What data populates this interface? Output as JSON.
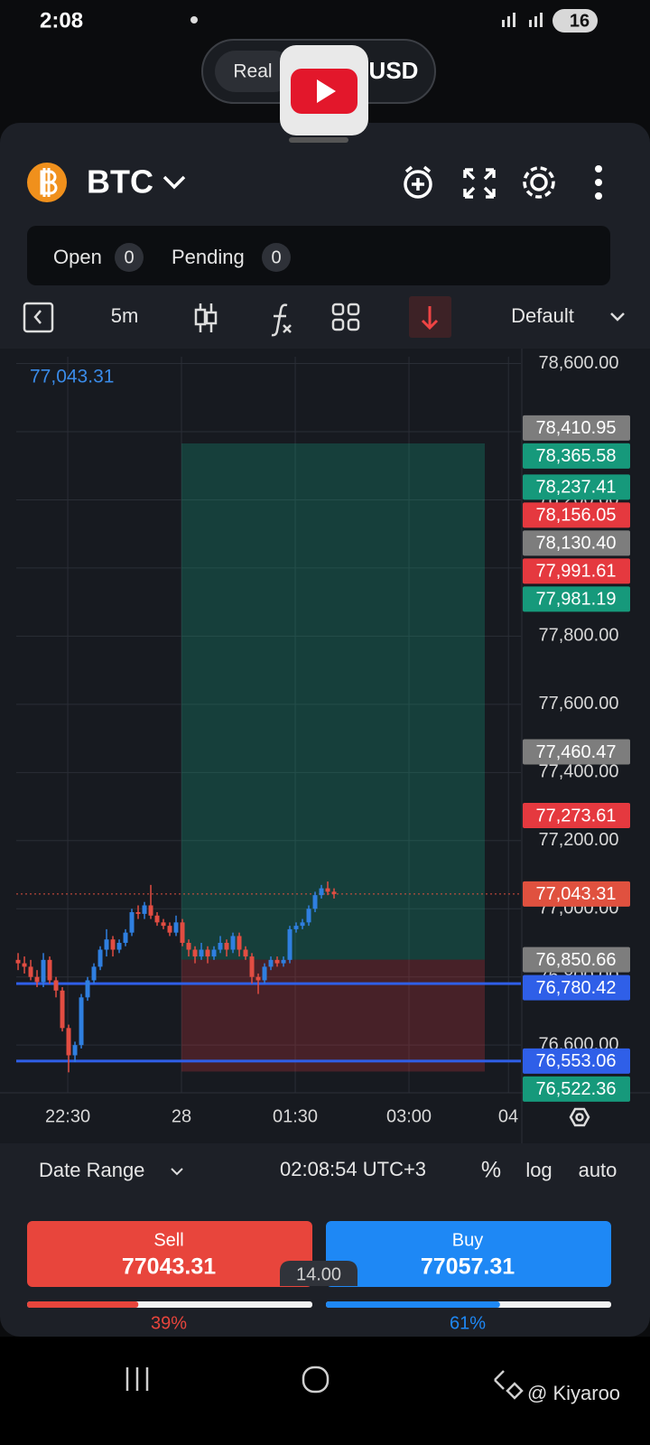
{
  "status_bar": {
    "time": "2:08",
    "battery": "16"
  },
  "account": {
    "mode": "Real",
    "currency": "USD"
  },
  "header": {
    "symbol": "BTC"
  },
  "orders": {
    "open_label": "Open",
    "open_count": "0",
    "pending_label": "Pending",
    "pending_count": "0"
  },
  "toolbar": {
    "interval": "5m",
    "layout": "Default"
  },
  "chart_data": {
    "type": "candlestick",
    "crosshair_label": "77,043.31",
    "up_color": "#2f7fe0",
    "down_color": "#e24d42",
    "open": [
      76850,
      76840,
      76830,
      76800,
      76785,
      76850,
      76790,
      76760,
      76650,
      76570,
      76600,
      76740,
      76790,
      76830,
      76880,
      76910,
      76880,
      76900,
      76930,
      76990,
      76985,
      77010,
      76980,
      76960,
      76950,
      76930,
      76960,
      76900,
      76880,
      76860,
      76880,
      76860,
      76880,
      76900,
      76880,
      76920,
      76880,
      76860,
      76800,
      76790,
      76830,
      76850,
      76840,
      76850,
      76940,
      76950,
      76960,
      77000,
      77040,
      77060,
      77050
    ],
    "high": [
      76870,
      76860,
      76850,
      76820,
      76870,
      76860,
      76800,
      76770,
      76660,
      76610,
      76750,
      76800,
      76840,
      76890,
      76940,
      76920,
      76910,
      76940,
      77000,
      77010,
      77020,
      77070,
      76990,
      76970,
      76960,
      76980,
      76970,
      76910,
      76890,
      76900,
      76890,
      76890,
      76920,
      76910,
      76930,
      76930,
      76890,
      76870,
      76810,
      76840,
      76860,
      76860,
      76860,
      76950,
      76960,
      76970,
      77010,
      77050,
      77070,
      77080,
      77060
    ],
    "low": [
      76820,
      76810,
      76790,
      76770,
      76770,
      76780,
      76740,
      76640,
      76520,
      76550,
      76590,
      76730,
      76780,
      76820,
      76860,
      76860,
      76870,
      76890,
      76920,
      76970,
      76970,
      76970,
      76950,
      76940,
      76920,
      76920,
      76890,
      76860,
      76840,
      76850,
      76840,
      76850,
      76870,
      76860,
      76870,
      76860,
      76850,
      76780,
      76750,
      76780,
      76820,
      76830,
      76830,
      76840,
      76930,
      76940,
      76950,
      76990,
      77030,
      77040,
      77030
    ],
    "close": [
      76840,
      76830,
      76800,
      76785,
      76850,
      76790,
      76760,
      76650,
      76570,
      76600,
      76740,
      76790,
      76830,
      76880,
      76910,
      76880,
      76900,
      76930,
      76990,
      76985,
      77010,
      76980,
      76960,
      76950,
      76930,
      76960,
      76900,
      76880,
      76860,
      76880,
      76860,
      76880,
      76900,
      76880,
      76920,
      76880,
      76860,
      76800,
      76790,
      76830,
      76850,
      76840,
      76850,
      76940,
      76950,
      76960,
      77000,
      77040,
      77060,
      77050,
      77043.31
    ],
    "xlim": [
      -0.29,
      79.57
    ],
    "xticks": [
      {
        "value": 7.86,
        "label": "22:30"
      },
      {
        "value": 25.86,
        "label": "28"
      },
      {
        "value": 43.86,
        "label": "01:30"
      },
      {
        "value": 61.86,
        "label": "03:00"
      },
      {
        "value": 77.6,
        "label": "04"
      }
    ],
    "ylim": [
      76460,
      78620
    ],
    "yticks": [
      {
        "value": 78600,
        "label": "78,600.00"
      },
      {
        "value": 78400,
        "label": "78,400.00"
      },
      {
        "value": 78200,
        "label": "78,200.00"
      },
      {
        "value": 78000,
        "label": "78,000.00"
      },
      {
        "value": 77800,
        "label": "77,800.00"
      },
      {
        "value": 77600,
        "label": "77,600.00"
      },
      {
        "value": 77400,
        "label": "77,400.00"
      },
      {
        "value": 77200,
        "label": "77,200.00"
      },
      {
        "value": 77000,
        "label": "77,000.00"
      },
      {
        "value": 76800,
        "label": "76,800.00"
      },
      {
        "value": 76600,
        "label": "76,600.00"
      }
    ],
    "grid": true,
    "position": {
      "take_profit": 78365.58,
      "entry": 76850.66,
      "stop_loss": 76522.36
    },
    "lines": [
      76780.42,
      76553.06
    ],
    "line_color": "#2f5fe8",
    "price_tags": [
      {
        "value": 78410.95,
        "label": "78,410.95",
        "color": "#7d7d7d"
      },
      {
        "value": 78365.58,
        "label": "78,365.58",
        "color": "#16997b"
      },
      {
        "value": 78237.41,
        "label": "78,237.41",
        "color": "#16997b"
      },
      {
        "value": 78156.05,
        "label": "78,156.05",
        "color": "#e5393f"
      },
      {
        "value": 78130.4,
        "label": "78,130.40",
        "color": "#7d7d7d"
      },
      {
        "value": 77991.61,
        "label": "77,991.61",
        "color": "#e5393f"
      },
      {
        "value": 77981.19,
        "label": "77,981.19",
        "color": "#16997b"
      },
      {
        "value": 77460.47,
        "label": "77,460.47",
        "color": "#7d7d7d"
      },
      {
        "value": 77273.61,
        "label": "77,273.61",
        "color": "#e5393f"
      },
      {
        "value": 77043.31,
        "label": "77,043.31",
        "color": "#e0513f"
      },
      {
        "value": 76850.66,
        "label": "76,850.66",
        "color": "#7d7d7d"
      },
      {
        "value": 76780.42,
        "label": "76,780.42",
        "color": "#2f5fe8"
      },
      {
        "value": 76553.06,
        "label": "76,553.06",
        "color": "#2f5fe8"
      },
      {
        "value": 76522.36,
        "label": "76,522.36",
        "color": "#16997b"
      }
    ]
  },
  "footer": {
    "date_range": "Date Range",
    "clock": "02:08:54 UTC+3",
    "percent": "%",
    "log": "log",
    "auto": "auto"
  },
  "trade": {
    "sell_label": "Sell",
    "sell_price": "77043.31",
    "buy_label": "Buy",
    "buy_price": "77057.31",
    "spread": "14.00"
  },
  "sentiment": {
    "sell": {
      "value": 39,
      "label": "39%"
    },
    "buy": {
      "value": 61,
      "label": "61%"
    }
  },
  "watermark": "@ Kiyaroo"
}
